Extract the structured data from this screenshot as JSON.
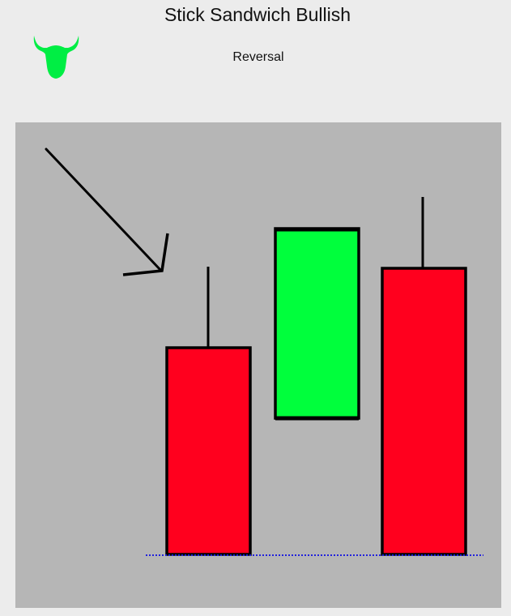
{
  "header": {
    "title": "Stick Sandwich Bullish",
    "subtitle": "Reversal"
  },
  "logo": {
    "icon": "bull-head-icon",
    "color": "#00ee44"
  },
  "diagram": {
    "background": "#b6b6b6",
    "arrow": {
      "direction": "down-right",
      "color": "#000000"
    },
    "support_line": {
      "style": "dotted",
      "color": "#2222dd"
    },
    "candles": [
      {
        "name": "first-candle",
        "type": "bearish",
        "color": "#ff001e"
      },
      {
        "name": "second-candle",
        "type": "bullish",
        "color": "#00ff3c"
      },
      {
        "name": "third-candle",
        "type": "bearish",
        "color": "#ff001e"
      }
    ]
  }
}
